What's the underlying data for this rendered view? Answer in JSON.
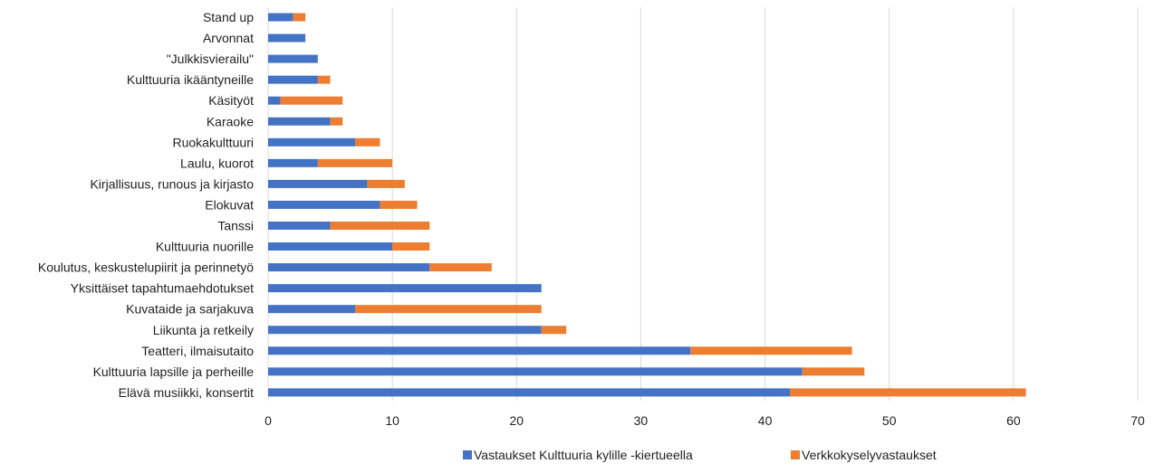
{
  "chart_data": {
    "type": "bar",
    "orientation": "horizontal",
    "stacked": true,
    "categories": [
      "Stand up",
      "Arvonnat",
      "\"Julkkisvierailu\"",
      "Kulttuuria ikääntyneille",
      "Käsityöt",
      "Karaoke",
      "Ruokakulttuuri",
      "Laulu, kuorot",
      "Kirjallisuus, runous ja kirjasto",
      "Elokuvat",
      "Tanssi",
      "Kulttuuria nuorille",
      "Koulutus, keskustelupiirit ja perinnetyö",
      "Yksittäiset tapahtumaehdotukset",
      "Kuvataide ja sarjakuva",
      "Liikunta ja retkeily",
      "Teatteri, ilmaisutaito",
      "Kulttuuria lapsille ja perheille",
      "Elävä musiikki, konsertit"
    ],
    "series": [
      {
        "name": "Vastaukset Kulttuuria kylille -kiertueella",
        "color": "#4472C4",
        "values": [
          2,
          3,
          4,
          4,
          1,
          5,
          7,
          4,
          8,
          9,
          5,
          10,
          13,
          22,
          7,
          22,
          34,
          43,
          42
        ]
      },
      {
        "name": "Verkkokyselyvastaukset",
        "color": "#ED7D31",
        "values": [
          1,
          0,
          0,
          1,
          5,
          1,
          2,
          6,
          3,
          3,
          8,
          3,
          5,
          0,
          15,
          2,
          13,
          5,
          19
        ]
      }
    ],
    "xlim": [
      0,
      70
    ],
    "xticks": [
      "0",
      "10",
      "20",
      "30",
      "40",
      "50",
      "60",
      "70"
    ],
    "xtick_values": [
      0,
      10,
      20,
      30,
      40,
      50,
      60,
      70
    ],
    "grid": true,
    "legend": "bottom"
  }
}
